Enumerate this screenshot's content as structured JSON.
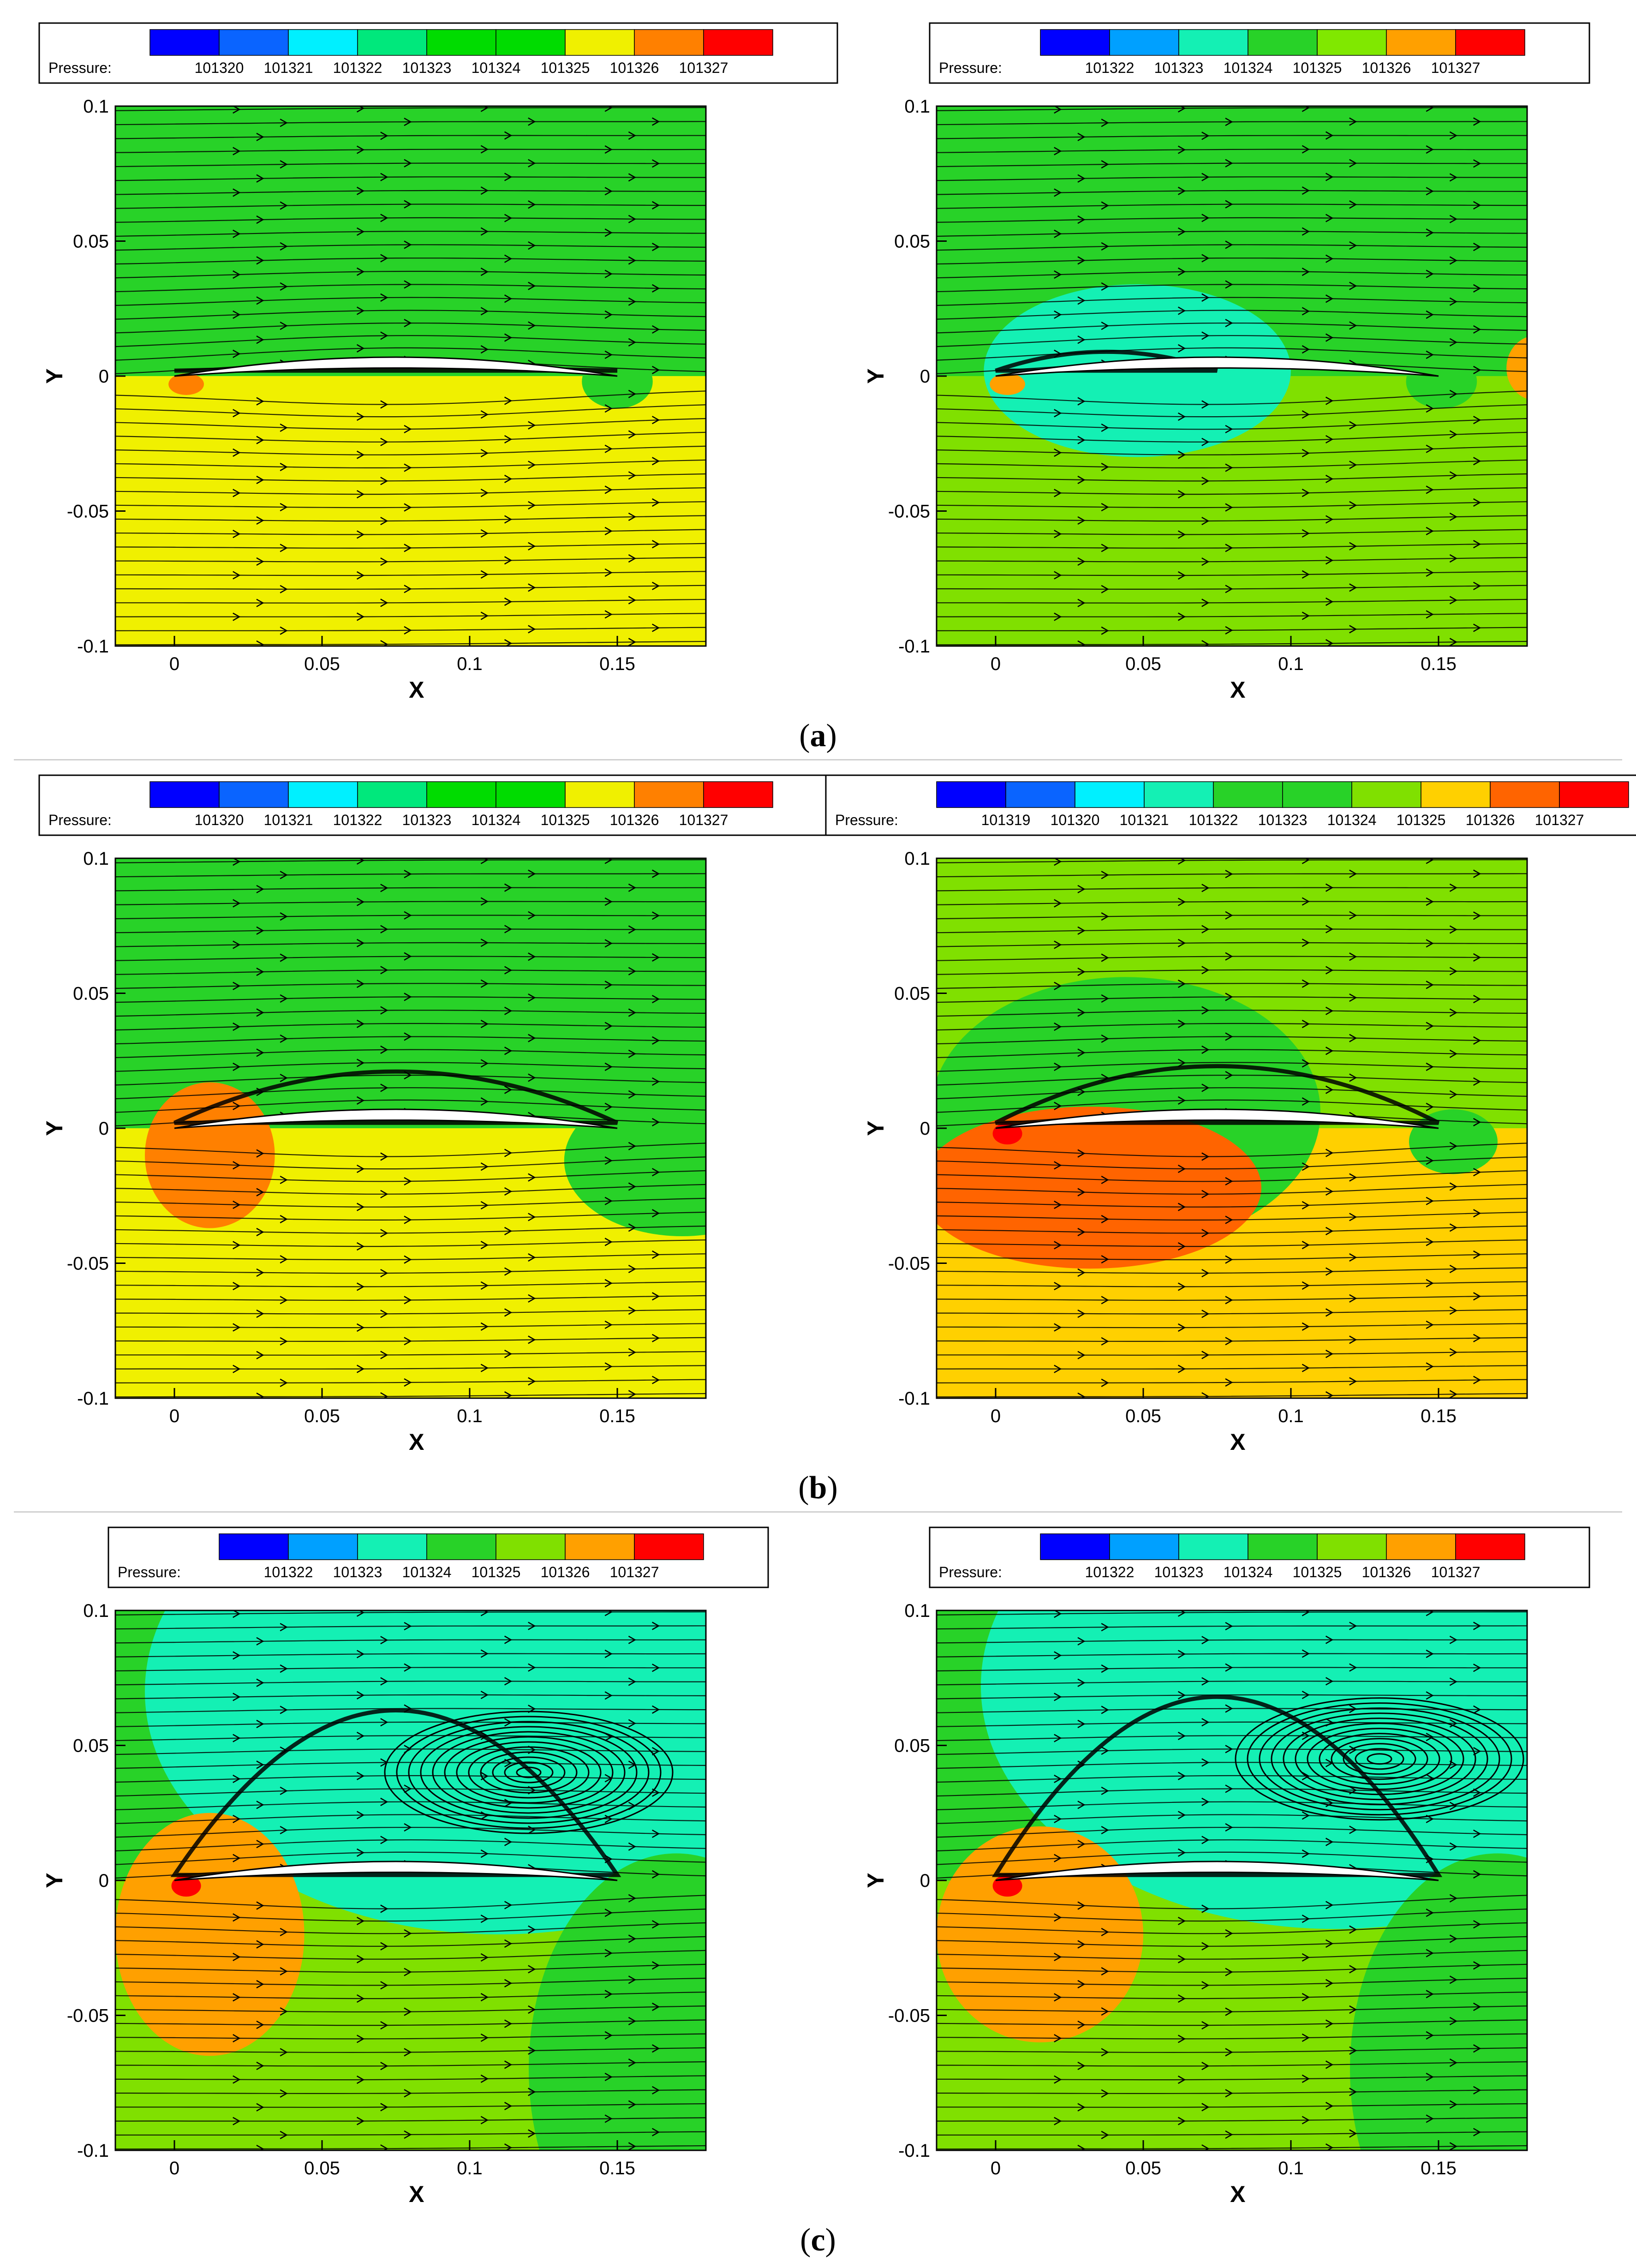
{
  "figure": {
    "row_labels": [
      {
        "open": "(",
        "letter": "a",
        "close": ")"
      },
      {
        "open": "(",
        "letter": "b",
        "close": ")"
      },
      {
        "open": "(",
        "letter": "c",
        "close": ")"
      }
    ]
  },
  "chart_data": [
    {
      "type": "heatmap",
      "id": "a-left",
      "xlabel": "X",
      "ylabel": "Y",
      "xlim": [
        -0.02,
        0.18
      ],
      "ylim": [
        -0.1,
        0.1
      ],
      "xticks": [
        0,
        0.05,
        0.1,
        0.15
      ],
      "xtick_labels": [
        "0",
        "0.05",
        "0.1",
        "0.15"
      ],
      "yticks": [
        -0.1,
        -0.05,
        0,
        0.05,
        0.1
      ],
      "ytick_labels": [
        "-0.1",
        "-0.05",
        "0",
        "0.05",
        "0.1"
      ],
      "legend": {
        "title": "Pressure:",
        "levels": [
          "101320",
          "101321",
          "101322",
          "101323",
          "101324",
          "101325",
          "101326",
          "101327"
        ],
        "colors": [
          "#0000ff",
          "#0a64ff",
          "#00f0ff",
          "#00e87c",
          "#00dc00",
          "#00dc00",
          "#f0f000",
          "#ff8000",
          "#ff0000"
        ]
      },
      "background_upper": "#28d228",
      "background_lower": "#f0f000",
      "regions": [
        {
          "shape": "ellipse",
          "cx": 0.004,
          "cy": -0.003,
          "rx": 0.006,
          "ry": 0.004,
          "color": "#ff8000"
        },
        {
          "shape": "ellipse",
          "cx": 0.15,
          "cy": -0.002,
          "rx": 0.012,
          "ry": 0.01,
          "color": "#28d228"
        }
      ],
      "separation": {
        "x0": 0.0,
        "x1": 0.15,
        "ymax": 0.0
      }
    },
    {
      "type": "heatmap",
      "id": "a-right",
      "xlabel": "X",
      "ylabel": "Y",
      "xlim": [
        -0.02,
        0.18
      ],
      "ylim": [
        -0.1,
        0.1
      ],
      "xticks": [
        0,
        0.05,
        0.1,
        0.15
      ],
      "xtick_labels": [
        "0",
        "0.05",
        "0.1",
        "0.15"
      ],
      "yticks": [
        -0.1,
        -0.05,
        0,
        0.05,
        0.1
      ],
      "ytick_labels": [
        "-0.1",
        "-0.05",
        "0",
        "0.05",
        "0.1"
      ],
      "legend": {
        "title": "Pressure:",
        "levels": [
          "101322",
          "101323",
          "101324",
          "101325",
          "101326",
          "101327"
        ],
        "colors": [
          "#0000ff",
          "#00a0ff",
          "#14f0b4",
          "#28d228",
          "#80e800",
          "#ffa000",
          "#ff0000"
        ]
      },
      "background_upper": "#28d228",
      "background_lower": "#80e000",
      "regions": [
        {
          "shape": "ellipse",
          "cx": 0.048,
          "cy": 0.002,
          "rx": 0.052,
          "ry": 0.032,
          "color": "#14f0b4"
        },
        {
          "shape": "ellipse",
          "cx": 0.004,
          "cy": -0.003,
          "rx": 0.006,
          "ry": 0.004,
          "color": "#ffa000"
        },
        {
          "shape": "ellipse",
          "cx": 0.151,
          "cy": -0.002,
          "rx": 0.012,
          "ry": 0.01,
          "color": "#28d228"
        },
        {
          "shape": "ellipse",
          "cx": 0.183,
          "cy": 0.003,
          "rx": 0.01,
          "ry": 0.012,
          "color": "#ffa000"
        }
      ],
      "separation": {
        "x0": 0.0,
        "x1": 0.075,
        "ymax": 0.006
      }
    },
    {
      "type": "heatmap",
      "id": "b-left",
      "xlabel": "X",
      "ylabel": "Y",
      "xlim": [
        -0.02,
        0.18
      ],
      "ylim": [
        -0.1,
        0.1
      ],
      "xticks": [
        0,
        0.05,
        0.1,
        0.15
      ],
      "xtick_labels": [
        "0",
        "0.05",
        "0.1",
        "0.15"
      ],
      "yticks": [
        -0.1,
        -0.05,
        0,
        0.05,
        0.1
      ],
      "ytick_labels": [
        "-0.1",
        "-0.05",
        "0",
        "0.05",
        "0.1"
      ],
      "legend": {
        "title": "Pressure:",
        "levels": [
          "101320",
          "101321",
          "101322",
          "101323",
          "101324",
          "101325",
          "101326",
          "101327"
        ],
        "colors": [
          "#0000ff",
          "#0a64ff",
          "#00f0ff",
          "#00e87c",
          "#00dc00",
          "#00dc00",
          "#f0f000",
          "#ff8000",
          "#ff0000"
        ]
      },
      "background_upper": "#28d228",
      "background_lower": "#f0f000",
      "regions": [
        {
          "shape": "ellipse",
          "cx": 0.012,
          "cy": -0.01,
          "rx": 0.022,
          "ry": 0.027,
          "color": "#ff8000"
        },
        {
          "shape": "ellipse",
          "cx": 0.172,
          "cy": -0.012,
          "rx": 0.04,
          "ry": 0.028,
          "color": "#28d228"
        }
      ],
      "separation": {
        "x0": 0.0,
        "x1": 0.15,
        "ymax": 0.018
      }
    },
    {
      "type": "heatmap",
      "id": "b-right",
      "xlabel": "X",
      "ylabel": "Y",
      "xlim": [
        -0.02,
        0.18
      ],
      "ylim": [
        -0.1,
        0.1
      ],
      "xticks": [
        0,
        0.05,
        0.1,
        0.15
      ],
      "xtick_labels": [
        "0",
        "0.05",
        "0.1",
        "0.15"
      ],
      "yticks": [
        -0.1,
        -0.05,
        0,
        0.05,
        0.1
      ],
      "ytick_labels": [
        "-0.1",
        "-0.05",
        "0",
        "0.05",
        "0.1"
      ],
      "legend": {
        "title": "Pressure:",
        "levels": [
          "101319",
          "101320",
          "101321",
          "101322",
          "101323",
          "101324",
          "101325",
          "101326",
          "101327"
        ],
        "colors": [
          "#0000ff",
          "#0a64ff",
          "#00f0ff",
          "#14f0b4",
          "#28d228",
          "#28d228",
          "#80e000",
          "#ffd000",
          "#ff6400",
          "#ff0000"
        ]
      },
      "background_upper": "#80e000",
      "background_lower": "#ffd000",
      "regions": [
        {
          "shape": "ellipse",
          "cx": 0.044,
          "cy": 0.006,
          "rx": 0.066,
          "ry": 0.05,
          "color": "#28d228"
        },
        {
          "shape": "ellipse",
          "cx": 0.032,
          "cy": -0.022,
          "rx": 0.058,
          "ry": 0.03,
          "color": "#ff6400"
        },
        {
          "shape": "ellipse",
          "cx": 0.155,
          "cy": -0.005,
          "rx": 0.015,
          "ry": 0.012,
          "color": "#28d228"
        },
        {
          "shape": "ellipse",
          "cx": 0.004,
          "cy": -0.002,
          "rx": 0.005,
          "ry": 0.004,
          "color": "#ff0000"
        }
      ],
      "separation": {
        "x0": 0.0,
        "x1": 0.15,
        "ymax": 0.02
      }
    },
    {
      "type": "heatmap",
      "id": "c-left",
      "xlabel": "X",
      "ylabel": "Y",
      "xlim": [
        -0.02,
        0.18
      ],
      "ylim": [
        -0.1,
        0.1
      ],
      "xticks": [
        0,
        0.05,
        0.1,
        0.15
      ],
      "xtick_labels": [
        "0",
        "0.05",
        "0.1",
        "0.15"
      ],
      "yticks": [
        -0.1,
        -0.05,
        0,
        0.05,
        0.1
      ],
      "ytick_labels": [
        "-0.1",
        "-0.05",
        "0",
        "0.05",
        "0.1"
      ],
      "legend": {
        "title": "Pressure:",
        "levels": [
          "101322",
          "101323",
          "101324",
          "101325",
          "101326",
          "101327"
        ],
        "colors": [
          "#0000ff",
          "#00a0ff",
          "#14f0b4",
          "#28d228",
          "#80e000",
          "#ffa000",
          "#ff0000"
        ]
      },
      "background_upper": "#28d228",
      "background_lower": "#80e000",
      "regions": [
        {
          "shape": "ellipse",
          "cx": 0.11,
          "cy": 0.07,
          "rx": 0.12,
          "ry": 0.09,
          "color": "#14f0b4"
        },
        {
          "shape": "ellipse",
          "cx": 0.012,
          "cy": -0.02,
          "rx": 0.032,
          "ry": 0.045,
          "color": "#ffa000"
        },
        {
          "shape": "ellipse",
          "cx": 0.17,
          "cy": -0.07,
          "rx": 0.05,
          "ry": 0.08,
          "color": "#28d228"
        },
        {
          "shape": "ellipse",
          "cx": 0.004,
          "cy": -0.002,
          "rx": 0.005,
          "ry": 0.004,
          "color": "#ff0000"
        }
      ],
      "vortex": {
        "cx": 0.12,
        "cy": 0.04
      },
      "separation": {
        "x0": 0.0,
        "x1": 0.15,
        "ymax": 0.06
      }
    },
    {
      "type": "heatmap",
      "id": "c-right",
      "xlabel": "X",
      "ylabel": "Y",
      "xlim": [
        -0.02,
        0.18
      ],
      "ylim": [
        -0.1,
        0.1
      ],
      "xticks": [
        0,
        0.05,
        0.1,
        0.15
      ],
      "xtick_labels": [
        "0",
        "0.05",
        "0.1",
        "0.15"
      ],
      "yticks": [
        -0.1,
        -0.05,
        0,
        0.05,
        0.1
      ],
      "ytick_labels": [
        "-0.1",
        "-0.05",
        "0",
        "0.05",
        "0.1"
      ],
      "legend": {
        "title": "Pressure:",
        "levels": [
          "101322",
          "101323",
          "101324",
          "101325",
          "101326",
          "101327"
        ],
        "colors": [
          "#0000ff",
          "#00a0ff",
          "#14f0b4",
          "#28d228",
          "#80e000",
          "#ffa000",
          "#ff0000"
        ]
      },
      "background_upper": "#28d228",
      "background_lower": "#80e000",
      "regions": [
        {
          "shape": "ellipse",
          "cx": 0.115,
          "cy": 0.072,
          "rx": 0.12,
          "ry": 0.09,
          "color": "#14f0b4"
        },
        {
          "shape": "ellipse",
          "cx": 0.015,
          "cy": -0.02,
          "rx": 0.035,
          "ry": 0.04,
          "color": "#ffa000"
        },
        {
          "shape": "ellipse",
          "cx": 0.17,
          "cy": -0.07,
          "rx": 0.05,
          "ry": 0.08,
          "color": "#28d228"
        },
        {
          "shape": "ellipse",
          "cx": 0.004,
          "cy": -0.002,
          "rx": 0.005,
          "ry": 0.004,
          "color": "#ff0000"
        }
      ],
      "vortex": {
        "cx": 0.13,
        "cy": 0.045
      },
      "separation": {
        "x0": 0.0,
        "x1": 0.15,
        "ymax": 0.065
      }
    }
  ]
}
